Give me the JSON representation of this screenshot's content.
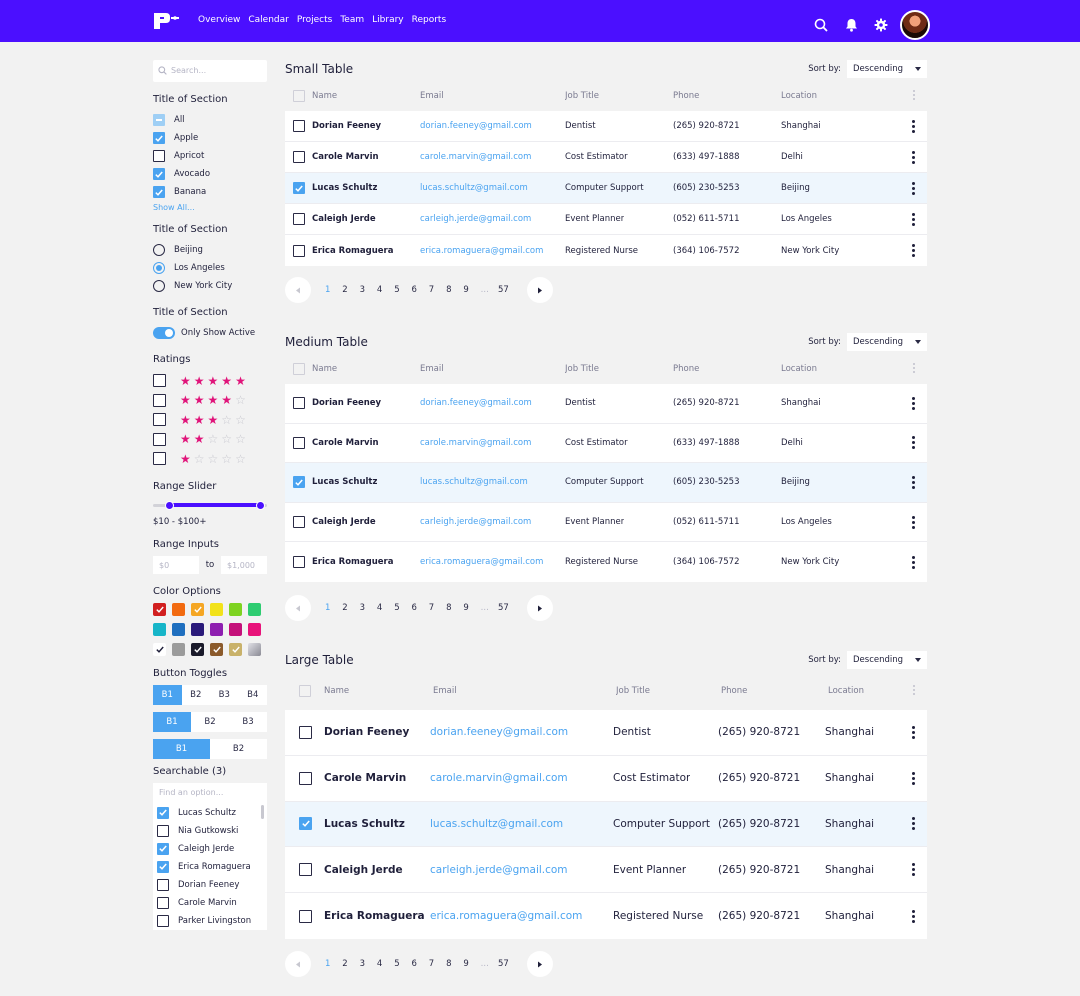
{
  "nav": {
    "items": [
      "Overview",
      "Calendar",
      "Projects",
      "Team",
      "Library",
      "Reports"
    ]
  },
  "icons": [
    "logo-icon",
    "search-icon",
    "bell-icon",
    "gear-icon"
  ],
  "sidebar": {
    "search_placeholder": "Search...",
    "section1": {
      "title": "Title of Section",
      "items": [
        {
          "label": "All",
          "state": "indeterminate"
        },
        {
          "label": "Apple",
          "state": "checked"
        },
        {
          "label": "Apricot",
          "state": "unchecked"
        },
        {
          "label": "Avocado",
          "state": "checked"
        },
        {
          "label": "Banana",
          "state": "checked"
        }
      ],
      "show_all": "Show All..."
    },
    "section2": {
      "title": "Title of Section",
      "items": [
        {
          "label": "Beijing",
          "selected": false
        },
        {
          "label": "Los Angeles",
          "selected": true
        },
        {
          "label": "New York City",
          "selected": false
        }
      ]
    },
    "section3": {
      "title": "Title of Section",
      "toggle_label": "Only Show Active",
      "toggle_on": true
    },
    "ratings": {
      "title": "Ratings",
      "levels": [
        5,
        4,
        3,
        2,
        1
      ],
      "max": 5
    },
    "range_slider": {
      "title": "Range Slider",
      "label": "$10 - $100+"
    },
    "range_inputs": {
      "title": "Range Inputs",
      "min_placeholder": "$0",
      "to": "to",
      "max_placeholder": "$1,000"
    },
    "color_options": {
      "title": "Color Options",
      "colors": [
        {
          "hex": "#d11f1f",
          "checked": true
        },
        {
          "hex": "#f26a10",
          "checked": false
        },
        {
          "hex": "#f5a623",
          "checked": true
        },
        {
          "hex": "#f2e21a",
          "checked": false
        },
        {
          "hex": "#7ed321",
          "checked": false
        },
        {
          "hex": "#2ecc71",
          "checked": false
        },
        {
          "hex": "#17b5c8",
          "checked": false
        },
        {
          "hex": "#1f6fbf",
          "checked": false
        },
        {
          "hex": "#2a1a7a",
          "checked": false
        },
        {
          "hex": "#8e1fb0",
          "checked": false
        },
        {
          "hex": "#c4117a",
          "checked": false
        },
        {
          "hex": "#e8137a",
          "checked": false
        },
        {
          "hex": "#ffffff",
          "checked": true
        },
        {
          "hex": "#9b9b9b",
          "checked": false
        },
        {
          "hex": "#1a1a2a",
          "checked": true
        },
        {
          "hex": "#8b5a2b",
          "checked": true
        },
        {
          "hex": "#c9b26a",
          "checked": true
        },
        {
          "hex": "#b8b8c0",
          "checked": false
        }
      ]
    },
    "button_toggles": {
      "title": "Button Toggles",
      "groups": [
        {
          "buttons": [
            "B1",
            "B2",
            "B3",
            "B4"
          ],
          "selected": 0
        },
        {
          "buttons": [
            "B1",
            "B2",
            "B3"
          ],
          "selected": 0
        },
        {
          "buttons": [
            "B1",
            "B2"
          ],
          "selected": 0
        }
      ]
    },
    "searchable": {
      "title": "Searchable (3)",
      "placeholder": "Find an option...",
      "items": [
        {
          "label": "Lucas Schultz",
          "checked": true
        },
        {
          "label": "Nia Gutkowski",
          "checked": false
        },
        {
          "label": "Caleigh Jerde",
          "checked": true
        },
        {
          "label": "Erica Romaguera",
          "checked": true
        },
        {
          "label": "Dorian Feeney",
          "checked": false
        },
        {
          "label": "Carole Marvin",
          "checked": false
        },
        {
          "label": "Parker Livingston",
          "checked": false
        }
      ]
    }
  },
  "tables": [
    {
      "title": "Small Table",
      "sort_label": "Sort by:",
      "sort_value": "Descending",
      "columns": [
        "Name",
        "Email",
        "Job Title",
        "Phone",
        "Location"
      ],
      "rows": [
        {
          "name": "Dorian Feeney",
          "email": "dorian.feeney@gmail.com",
          "job": "Dentist",
          "phone": "(265) 920-8721",
          "location": "Shanghai",
          "checked": false
        },
        {
          "name": "Carole Marvin",
          "email": "carole.marvin@gmail.com",
          "job": "Cost Estimator",
          "phone": "(633) 497-1888",
          "location": "Delhi",
          "checked": false
        },
        {
          "name": "Lucas Schultz",
          "email": "lucas.schultz@gmail.com",
          "job": "Computer Support",
          "phone": "(605) 230-5253",
          "location": "Beijing",
          "checked": true
        },
        {
          "name": "Caleigh Jerde",
          "email": "carleigh.jerde@gmail.com",
          "job": "Event Planner",
          "phone": "(052) 611-5711",
          "location": "Los Angeles",
          "checked": false
        },
        {
          "name": "Erica Romaguera",
          "email": "erica.romaguera@gmail.com",
          "job": "Registered Nurse",
          "phone": "(364) 106-7572",
          "location": "New York City",
          "checked": false
        }
      ],
      "pages": [
        "1",
        "2",
        "3",
        "4",
        "5",
        "6",
        "7",
        "8",
        "9",
        "...",
        "57"
      ],
      "current_page": "1"
    },
    {
      "title": "Medium Table",
      "sort_label": "Sort by:",
      "sort_value": "Descending",
      "columns": [
        "Name",
        "Email",
        "Job Title",
        "Phone",
        "Location"
      ],
      "rows": [
        {
          "name": "Dorian Feeney",
          "email": "dorian.feeney@gmail.com",
          "job": "Dentist",
          "phone": "(265) 920-8721",
          "location": "Shanghai",
          "checked": false
        },
        {
          "name": "Carole Marvin",
          "email": "carole.marvin@gmail.com",
          "job": "Cost Estimator",
          "phone": "(633) 497-1888",
          "location": "Delhi",
          "checked": false
        },
        {
          "name": "Lucas Schultz",
          "email": "lucas.schultz@gmail.com",
          "job": "Computer Support",
          "phone": "(605) 230-5253",
          "location": "Beijing",
          "checked": true
        },
        {
          "name": "Caleigh Jerde",
          "email": "carleigh.jerde@gmail.com",
          "job": "Event Planner",
          "phone": "(052) 611-5711",
          "location": "Los Angeles",
          "checked": false
        },
        {
          "name": "Erica Romaguera",
          "email": "erica.romaguera@gmail.com",
          "job": "Registered Nurse",
          "phone": "(364) 106-7572",
          "location": "New York City",
          "checked": false
        }
      ],
      "pages": [
        "1",
        "2",
        "3",
        "4",
        "5",
        "6",
        "7",
        "8",
        "9",
        "...",
        "57"
      ],
      "current_page": "1"
    },
    {
      "title": "Large Table",
      "sort_label": "Sort by:",
      "sort_value": "Descending",
      "columns": [
        "Name",
        "Email",
        "Job Title",
        "Phone",
        "Location"
      ],
      "rows": [
        {
          "name": "Dorian Feeney",
          "email": "dorian.feeney@gmail.com",
          "job": "Dentist",
          "phone": "(265) 920-8721",
          "location": "Shanghai",
          "checked": false
        },
        {
          "name": "Carole Marvin",
          "email": "carole.marvin@gmail.com",
          "job": "Cost Estimator",
          "phone": "(265) 920-8721",
          "location": "Shanghai",
          "checked": false
        },
        {
          "name": "Lucas Schultz",
          "email": "lucas.schultz@gmail.com",
          "job": "Computer Support",
          "phone": "(265) 920-8721",
          "location": "Shanghai",
          "checked": true
        },
        {
          "name": "Caleigh Jerde",
          "email": "carleigh.jerde@gmail.com",
          "job": "Event Planner",
          "phone": "(265) 920-8721",
          "location": "Shanghai",
          "checked": false
        },
        {
          "name": "Erica Romaguera",
          "email": "erica.romaguera@gmail.com",
          "job": "Registered Nurse",
          "phone": "(265) 920-8721",
          "location": "Shanghai",
          "checked": false
        }
      ],
      "pages": [
        "1",
        "2",
        "3",
        "4",
        "5",
        "6",
        "7",
        "8",
        "9",
        "...",
        "57"
      ],
      "current_page": "1"
    }
  ]
}
